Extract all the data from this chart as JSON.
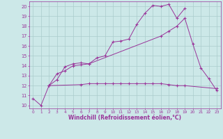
{
  "bg_color": "#cce8e8",
  "line_color": "#993399",
  "grid_color": "#aacccc",
  "xlabel": "Windchill (Refroidissement éolien,°C)",
  "xlim": [
    -0.5,
    23.5
  ],
  "ylim": [
    9.7,
    20.5
  ],
  "xtick_vals": [
    0,
    1,
    2,
    3,
    4,
    5,
    6,
    7,
    8,
    9,
    10,
    11,
    12,
    13,
    14,
    15,
    16,
    17,
    18,
    19,
    20,
    21,
    22,
    23
  ],
  "ytick_vals": [
    10,
    11,
    12,
    13,
    14,
    15,
    16,
    17,
    18,
    19,
    20
  ],
  "line1_x": [
    0,
    1,
    2,
    3,
    4,
    5,
    6,
    7,
    8,
    9,
    10,
    11,
    12,
    13,
    14,
    15,
    16,
    17,
    18,
    19
  ],
  "line1_y": [
    10.7,
    10.0,
    12.0,
    12.6,
    13.9,
    14.2,
    14.3,
    14.2,
    14.8,
    15.0,
    16.4,
    16.5,
    16.7,
    18.2,
    19.3,
    20.1,
    20.0,
    20.2,
    18.8,
    19.8
  ],
  "line2_x": [
    2,
    3,
    4,
    5,
    6,
    7,
    16,
    17,
    18,
    19,
    20,
    21,
    22,
    23
  ],
  "line2_y": [
    12.0,
    13.2,
    13.5,
    14.0,
    14.1,
    14.2,
    17.0,
    17.5,
    18.0,
    18.8,
    16.2,
    13.8,
    12.7,
    11.5
  ],
  "line3_x": [
    2,
    6,
    7,
    8,
    9,
    10,
    11,
    12,
    13,
    14,
    15,
    16,
    17,
    18,
    19,
    23
  ],
  "line3_y": [
    12.0,
    12.1,
    12.2,
    12.2,
    12.2,
    12.2,
    12.2,
    12.2,
    12.2,
    12.2,
    12.2,
    12.2,
    12.1,
    12.0,
    12.0,
    11.7
  ]
}
